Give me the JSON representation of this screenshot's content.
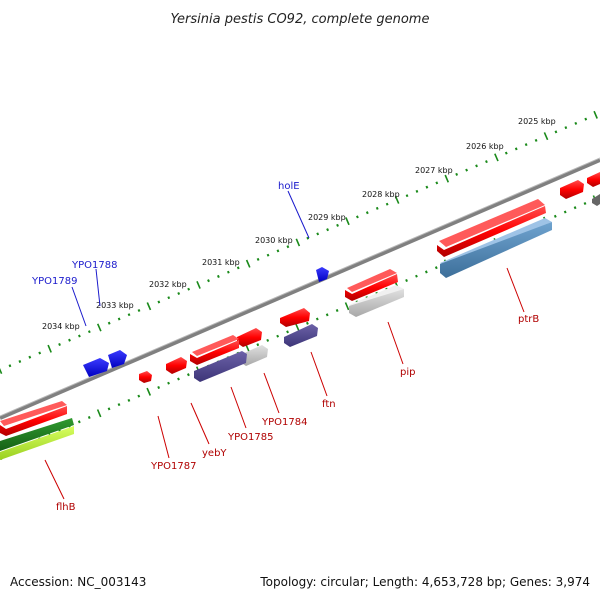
{
  "title": "Yersinia pestis CO92, complete genome",
  "footer": {
    "accession": "Accession: NC_003143",
    "summary": "Topology: circular; Length: 4,653,728 bp; Genes: 3,974"
  },
  "kbp_labels": [
    "2025 kbp",
    "2026 kbp",
    "2027 kbp",
    "2028 kbp",
    "2029 kbp",
    "2030 kbp",
    "2031 kbp",
    "2032 kbp",
    "2033 kbp",
    "2034 kbp"
  ],
  "genes_top": [
    "holE",
    "YPO1788",
    "YPO1789"
  ],
  "genes_bottom": [
    "ptrB",
    "pip",
    "ftn",
    "YPO1784",
    "YPO1785",
    "yebY",
    "YPO1787",
    "flhB"
  ],
  "colors": {
    "backbone": "#808080",
    "tick": "#1a8a1a",
    "forward_gene": "#1010e0",
    "reverse_gene": "#e00000",
    "label_top": "#1a1acc",
    "label_bottom": "#b00000"
  }
}
